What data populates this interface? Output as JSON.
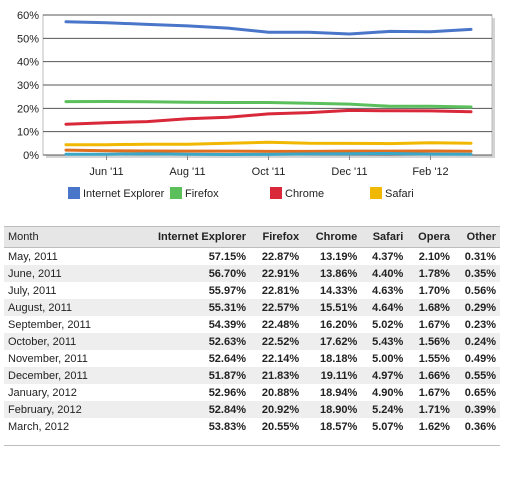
{
  "chart_data": {
    "type": "line",
    "x": [
      "May, 2011",
      "June, 2011",
      "July, 2011",
      "August, 2011",
      "September, 2011",
      "October, 2011",
      "November, 2011",
      "December, 2011",
      "January, 2012",
      "February, 2012",
      "March, 2012"
    ],
    "x_tick_labels": [
      "Jun '11",
      "Aug '11",
      "Oct '11",
      "Dec '11",
      "Feb '12"
    ],
    "x_tick_months": [
      "June, 2011",
      "August, 2011",
      "October, 2011",
      "December, 2011",
      "February, 2012"
    ],
    "ylim": [
      0,
      60
    ],
    "y_ticks": [
      0,
      10,
      20,
      30,
      40,
      50,
      60
    ],
    "y_tick_labels": [
      "0%",
      "10%",
      "20%",
      "30%",
      "40%",
      "50%",
      "60%"
    ],
    "grid": true,
    "legend_position": "bottom",
    "series": [
      {
        "name": "Internet Explorer",
        "color": "#4a76c9",
        "values": [
          57.15,
          56.7,
          55.97,
          55.31,
          54.39,
          52.63,
          52.64,
          51.87,
          52.96,
          52.84,
          53.83
        ]
      },
      {
        "name": "Firefox",
        "color": "#5bc05b",
        "values": [
          22.87,
          22.91,
          22.81,
          22.57,
          22.48,
          22.52,
          22.14,
          21.83,
          20.88,
          20.92,
          20.55
        ]
      },
      {
        "name": "Chrome",
        "color": "#d9283a",
        "values": [
          13.19,
          13.86,
          14.33,
          15.51,
          16.2,
          17.62,
          18.18,
          19.11,
          18.94,
          18.9,
          18.57
        ]
      },
      {
        "name": "Safari",
        "color": "#f0b800",
        "values": [
          4.37,
          4.4,
          4.63,
          4.64,
          5.02,
          5.43,
          5.0,
          4.97,
          4.9,
          5.24,
          5.07
        ]
      },
      {
        "name": "Opera",
        "color": "#e07020",
        "values": [
          2.1,
          1.78,
          1.7,
          1.68,
          1.67,
          1.56,
          1.55,
          1.66,
          1.67,
          1.71,
          1.62
        ]
      },
      {
        "name": "Other",
        "color": "#3aa7c7",
        "values": [
          0.31,
          0.35,
          0.56,
          0.29,
          0.23,
          0.24,
          0.49,
          0.55,
          0.65,
          0.39,
          0.36
        ]
      }
    ]
  },
  "legend": [
    {
      "label": "Internet Explorer",
      "color": "#4a76c9"
    },
    {
      "label": "Firefox",
      "color": "#5bc05b"
    },
    {
      "label": "Chrome",
      "color": "#d9283a"
    },
    {
      "label": "Safari",
      "color": "#f0b800"
    }
  ],
  "table": {
    "headers": [
      "Month",
      "Internet Explorer",
      "Firefox",
      "Chrome",
      "Safari",
      "Opera",
      "Other"
    ],
    "rows": [
      [
        "May, 2011",
        "57.15%",
        "22.87%",
        "13.19%",
        "4.37%",
        "2.10%",
        "0.31%"
      ],
      [
        "June, 2011",
        "56.70%",
        "22.91%",
        "13.86%",
        "4.40%",
        "1.78%",
        "0.35%"
      ],
      [
        "July, 2011",
        "55.97%",
        "22.81%",
        "14.33%",
        "4.63%",
        "1.70%",
        "0.56%"
      ],
      [
        "August, 2011",
        "55.31%",
        "22.57%",
        "15.51%",
        "4.64%",
        "1.68%",
        "0.29%"
      ],
      [
        "September, 2011",
        "54.39%",
        "22.48%",
        "16.20%",
        "5.02%",
        "1.67%",
        "0.23%"
      ],
      [
        "October, 2011",
        "52.63%",
        "22.52%",
        "17.62%",
        "5.43%",
        "1.56%",
        "0.24%"
      ],
      [
        "November, 2011",
        "52.64%",
        "22.14%",
        "18.18%",
        "5.00%",
        "1.55%",
        "0.49%"
      ],
      [
        "December, 2011",
        "51.87%",
        "21.83%",
        "19.11%",
        "4.97%",
        "1.66%",
        "0.55%"
      ],
      [
        "January, 2012",
        "52.96%",
        "20.88%",
        "18.94%",
        "4.90%",
        "1.67%",
        "0.65%"
      ],
      [
        "February, 2012",
        "52.84%",
        "20.92%",
        "18.90%",
        "5.24%",
        "1.71%",
        "0.39%"
      ],
      [
        "March, 2012",
        "53.83%",
        "20.55%",
        "18.57%",
        "5.07%",
        "1.62%",
        "0.36%"
      ]
    ]
  }
}
